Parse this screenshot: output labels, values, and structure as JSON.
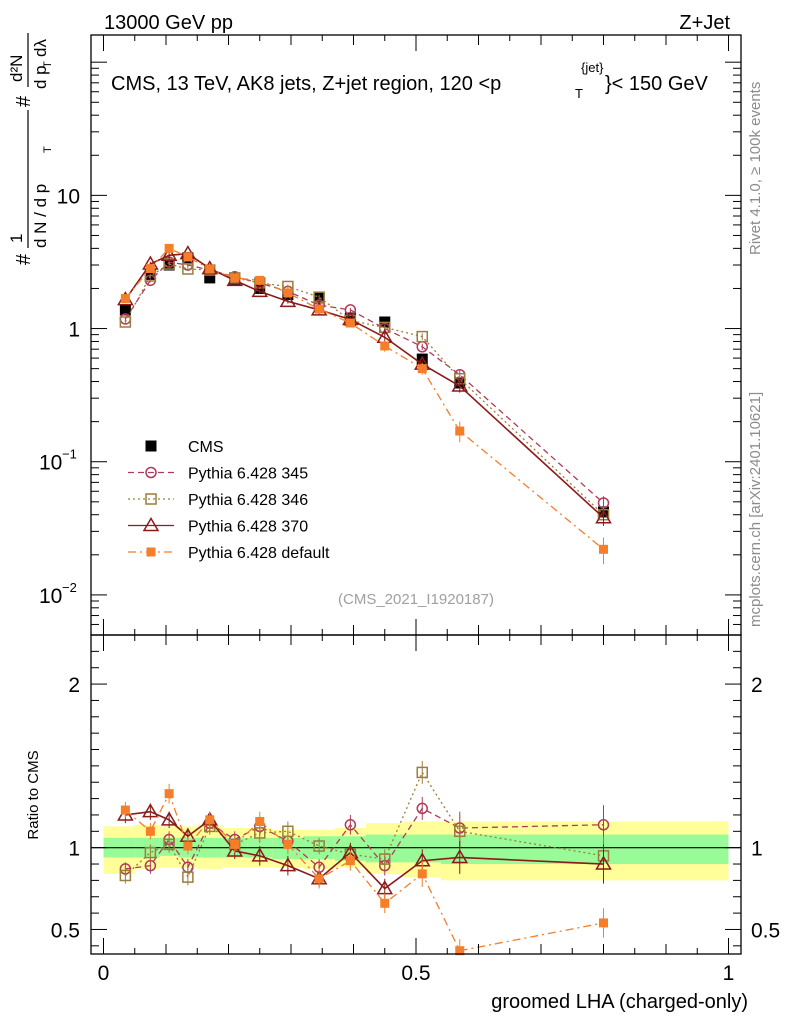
{
  "header": {
    "left": "13000 GeV pp",
    "right": "Z+Jet"
  },
  "side_text": {
    "top": "Rivet 4.1.0, ≥ 100k events",
    "bottom": "mcplots.cern.ch [arXiv:2401.10621]"
  },
  "watermark": "(CMS_2021_I1920187)",
  "chart_data": [
    {
      "type": "scatter",
      "panel": "main",
      "title": "CMS, 13 TeV, AK8 jets, Z+jet region, 120 <p_T^{jet}< 150 GeV",
      "title_parts": {
        "prefix": "CMS, 13 TeV, AK8 jets, Z+jet region, 120 <p",
        "sub": "T",
        "sup": "{jet}",
        "suffix": "}< 150 GeV"
      },
      "ylabel_parts": [
        "#",
        "1",
        "d N / d p",
        "T",
        "#",
        "d²N",
        "d p",
        "T",
        "dλ"
      ],
      "yscale": "log",
      "ylim": [
        0.005,
        160
      ],
      "xlim": [
        -0.02,
        1.02
      ],
      "y_ticks": [
        {
          "value": 10,
          "label": "10"
        },
        {
          "value": 1,
          "label": "1"
        },
        {
          "value": 0.1,
          "label": "10",
          "exp": "−1"
        },
        {
          "value": 0.01,
          "label": "10",
          "exp": "−2"
        }
      ],
      "x": [
        0.035,
        0.075,
        0.105,
        0.135,
        0.17,
        0.21,
        0.25,
        0.295,
        0.345,
        0.395,
        0.45,
        0.51,
        0.57,
        0.8
      ],
      "series": [
        {
          "name": "CMS",
          "marker": "filled-square",
          "color": "#000000",
          "values": [
            1.38,
            2.55,
            3.0,
            3.4,
            2.4,
            2.35,
            2.0,
            1.8,
            1.7,
            1.2,
            1.12,
            0.59,
            0.39,
            0.042
          ],
          "errors": [
            0.06,
            0.1,
            0.1,
            0.1,
            0.08,
            0.08,
            0.07,
            0.06,
            0.06,
            0.04,
            0.04,
            0.02,
            0.015,
            0.002
          ]
        },
        {
          "name": "Pythia 6.428 345",
          "marker": "open-circle",
          "line": "dashed",
          "color": "#b03a5b",
          "values": [
            1.18,
            2.3,
            3.15,
            3.0,
            2.75,
            2.45,
            2.2,
            1.9,
            1.5,
            1.38,
            1.0,
            0.73,
            0.45,
            0.049
          ],
          "errors": [
            0.05,
            0.08,
            0.1,
            0.1,
            0.09,
            0.08,
            0.08,
            0.07,
            0.06,
            0.05,
            0.05,
            0.04,
            0.04,
            0.006
          ]
        },
        {
          "name": "Pythia 6.428 346",
          "marker": "open-square",
          "line": "dotted",
          "color": "#9b7d3c",
          "values": [
            1.12,
            2.48,
            3.05,
            2.8,
            2.75,
            2.4,
            2.2,
            2.07,
            1.72,
            1.15,
            1.02,
            0.87,
            0.42,
            0.04
          ],
          "errors": [
            0.05,
            0.08,
            0.1,
            0.1,
            0.09,
            0.08,
            0.08,
            0.07,
            0.06,
            0.05,
            0.05,
            0.05,
            0.04,
            0.006
          ]
        },
        {
          "name": "Pythia 6.428 370",
          "marker": "open-triangle",
          "line": "solid",
          "color": "#8b1a1a",
          "values": [
            1.65,
            3.05,
            3.55,
            3.65,
            2.82,
            2.3,
            1.9,
            1.6,
            1.38,
            1.17,
            0.86,
            0.54,
            0.37,
            0.038
          ],
          "errors": [
            0.06,
            0.12,
            0.3,
            0.12,
            0.2,
            0.08,
            0.07,
            0.06,
            0.1,
            0.05,
            0.08,
            0.04,
            0.04,
            0.005
          ]
        },
        {
          "name": "Pythia 6.428 default",
          "marker": "filled-small-square",
          "line": "dashdot",
          "color": "#f57e2a",
          "values": [
            1.68,
            2.82,
            4.0,
            3.45,
            2.8,
            2.4,
            2.3,
            1.85,
            1.4,
            1.1,
            0.74,
            0.5,
            0.17,
            0.022
          ],
          "errors": [
            0.06,
            0.1,
            0.2,
            0.12,
            0.1,
            0.08,
            0.08,
            0.07,
            0.06,
            0.05,
            0.07,
            0.05,
            0.03,
            0.005
          ]
        }
      ]
    },
    {
      "type": "scatter",
      "panel": "ratio",
      "ylabel": "Ratio to CMS",
      "ylim": [
        0.35,
        2.3
      ],
      "xlim": [
        -0.02,
        1.02
      ],
      "xlabel": "groomed LHA (charged-only)",
      "x_ticks": [
        {
          "value": 0,
          "label": "0"
        },
        {
          "value": 0.5,
          "label": "0.5"
        },
        {
          "value": 1,
          "label": "1"
        }
      ],
      "y_ticks": [
        {
          "value": 0.5,
          "label": "0.5"
        },
        {
          "value": 1,
          "label": "1"
        },
        {
          "value": 2,
          "label": "2"
        }
      ],
      "band_bin_edges": [
        0,
        0.05,
        0.09,
        0.12,
        0.15,
        0.19,
        0.23,
        0.27,
        0.32,
        0.37,
        0.42,
        0.48,
        0.54,
        0.6,
        1.0
      ],
      "band_yellow": [
        [
          0.84,
          1.13
        ],
        [
          0.87,
          1.14
        ],
        [
          0.88,
          1.13
        ],
        [
          0.88,
          1.13
        ],
        [
          0.87,
          1.14
        ],
        [
          0.88,
          1.12
        ],
        [
          0.88,
          1.12
        ],
        [
          0.88,
          1.11
        ],
        [
          0.87,
          1.11
        ],
        [
          0.88,
          1.12
        ],
        [
          0.84,
          1.15
        ],
        [
          0.82,
          1.16
        ],
        [
          0.8,
          1.16
        ],
        [
          0.8,
          1.16
        ]
      ],
      "band_green": [
        [
          0.94,
          1.06
        ],
        [
          0.94,
          1.06
        ],
        [
          0.95,
          1.06
        ],
        [
          0.94,
          1.06
        ],
        [
          0.94,
          1.06
        ],
        [
          0.94,
          1.06
        ],
        [
          0.94,
          1.06
        ],
        [
          0.93,
          1.06
        ],
        [
          0.93,
          1.07
        ],
        [
          0.92,
          1.07
        ],
        [
          0.91,
          1.08
        ],
        [
          0.91,
          1.08
        ],
        [
          0.9,
          1.08
        ],
        [
          0.9,
          1.08
        ]
      ],
      "series": [
        {
          "name": "Pythia 6.428 345",
          "color": "#b03a5b",
          "values": [
            0.87,
            0.89,
            1.05,
            0.88,
            1.15,
            1.05,
            1.13,
            1.04,
            0.88,
            1.14,
            0.89,
            1.24,
            1.12,
            1.14
          ],
          "errors": [
            0.04,
            0.05,
            0.05,
            0.05,
            0.05,
            0.05,
            0.06,
            0.06,
            0.05,
            0.06,
            0.06,
            0.07,
            0.1,
            0.12
          ]
        },
        {
          "name": "Pythia 6.428 346",
          "color": "#9b7d3c",
          "values": [
            0.83,
            0.97,
            1.02,
            0.82,
            1.13,
            1.02,
            1.09,
            1.1,
            1.01,
            0.96,
            0.93,
            1.46,
            1.1,
            0.95
          ],
          "errors": [
            0.05,
            0.05,
            0.05,
            0.05,
            0.05,
            0.05,
            0.06,
            0.06,
            0.05,
            0.06,
            0.06,
            0.07,
            0.1,
            0.12
          ]
        },
        {
          "name": "Pythia 6.428 370",
          "color": "#8b1a1a",
          "values": [
            1.2,
            1.22,
            1.17,
            1.07,
            1.17,
            0.98,
            0.95,
            0.89,
            0.81,
            0.97,
            0.75,
            0.92,
            0.94,
            0.9
          ],
          "errors": [
            0.05,
            0.05,
            0.05,
            0.05,
            0.05,
            0.05,
            0.06,
            0.06,
            0.05,
            0.06,
            0.06,
            0.07,
            0.1,
            0.12
          ]
        },
        {
          "name": "Pythia 6.428 default",
          "color": "#f57e2a",
          "values": [
            1.23,
            1.1,
            1.33,
            1.01,
            1.17,
            1.02,
            1.16,
            1.02,
            0.81,
            0.92,
            0.66,
            0.84,
            0.37,
            0.54
          ],
          "errors": [
            0.05,
            0.05,
            0.06,
            0.05,
            0.05,
            0.05,
            0.06,
            0.06,
            0.06,
            0.06,
            0.06,
            0.08,
            0.07,
            0.09
          ]
        }
      ]
    }
  ]
}
